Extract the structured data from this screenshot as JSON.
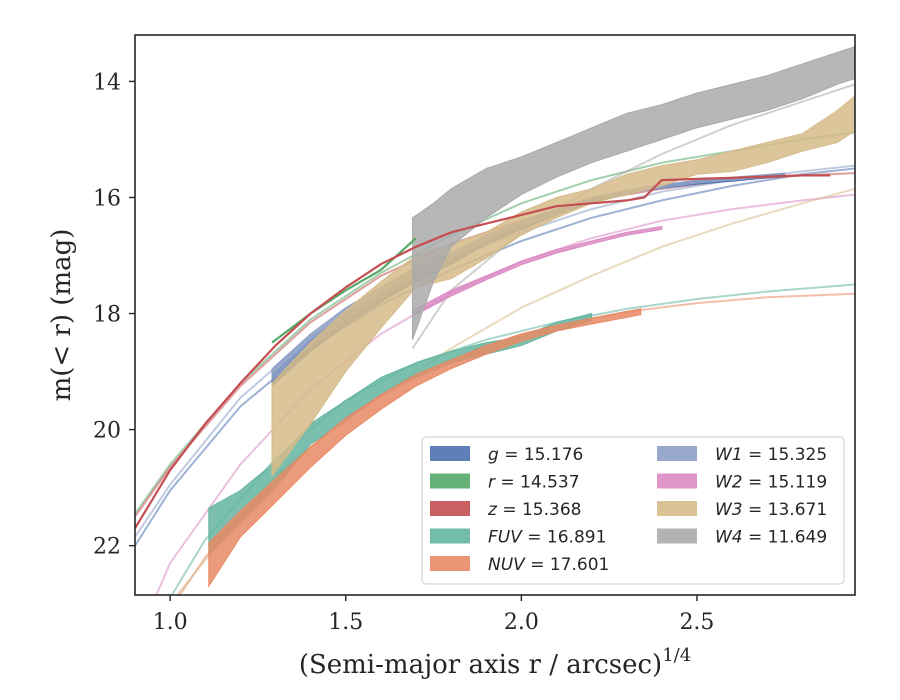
{
  "chart_data": {
    "type": "line",
    "xlabel": "(Semi-major axis r / arcsec)",
    "xlabel_sup": "1/4",
    "ylabel": "m(< r) (mag)",
    "xlim": [
      0.9,
      2.95
    ],
    "ylim": [
      22.85,
      13.2
    ],
    "y_inverted": true,
    "x_ticks": [
      1.0,
      1.5,
      2.0,
      2.5
    ],
    "x_tick_labels": [
      "1.0",
      "1.5",
      "2.0",
      "2.5"
    ],
    "y_ticks": [
      14,
      16,
      18,
      20,
      22
    ],
    "y_tick_labels": [
      "14",
      "16",
      "18",
      "20",
      "22"
    ],
    "grid": false,
    "legend_position": "lower-right",
    "series": [
      {
        "name": "g = 15.176",
        "legend_label": "g",
        "legend_value": "= 15.176",
        "color": "#4c72b0",
        "model": [
          [
            0.9,
            22.0
          ],
          [
            1.0,
            21.05
          ],
          [
            1.2,
            19.6
          ],
          [
            1.4,
            18.6
          ],
          [
            1.6,
            17.85
          ],
          [
            1.8,
            17.25
          ],
          [
            2.0,
            16.75
          ],
          [
            2.2,
            16.35
          ],
          [
            2.4,
            16.05
          ],
          [
            2.6,
            15.8
          ],
          [
            2.8,
            15.6
          ],
          [
            2.95,
            15.5
          ]
        ],
        "band": [
          [
            1.29,
            19.05,
            19.25
          ],
          [
            1.4,
            18.45,
            18.65
          ],
          [
            1.5,
            18.0,
            18.2
          ],
          [
            1.6,
            17.65,
            17.8
          ],
          [
            1.7,
            17.3,
            17.45
          ],
          [
            1.8,
            17.0,
            17.15
          ],
          [
            1.9,
            16.7,
            16.8
          ],
          [
            2.0,
            16.45,
            16.55
          ],
          [
            2.1,
            16.2,
            16.3
          ],
          [
            2.2,
            16.0,
            16.08
          ],
          [
            2.35,
            15.82,
            15.88
          ],
          [
            2.5,
            15.72,
            15.77
          ],
          [
            2.6,
            15.68,
            15.72
          ],
          [
            2.7,
            15.62,
            15.66
          ],
          [
            2.75,
            15.6,
            15.64
          ]
        ],
        "line": null
      },
      {
        "name": "r = 14.537",
        "legend_label": "r",
        "legend_value": "= 14.537",
        "color": "#55a868",
        "model": [
          [
            0.9,
            21.45
          ],
          [
            1.0,
            20.6
          ],
          [
            1.2,
            19.2
          ],
          [
            1.4,
            18.1
          ],
          [
            1.6,
            17.3
          ],
          [
            1.8,
            16.65
          ],
          [
            2.0,
            16.1
          ],
          [
            2.2,
            15.7
          ],
          [
            2.4,
            15.4
          ],
          [
            2.6,
            15.2
          ],
          [
            2.8,
            15.0
          ],
          [
            2.95,
            14.88
          ]
        ],
        "band": null,
        "line": [
          [
            1.29,
            18.5
          ],
          [
            1.4,
            18.0
          ],
          [
            1.5,
            17.6
          ],
          [
            1.6,
            17.25
          ],
          [
            1.7,
            16.7
          ]
        ]
      },
      {
        "name": "z = 15.368",
        "legend_label": "z",
        "legend_value": "= 15.368",
        "color": "#c44e52",
        "model": [
          [
            0.9,
            21.5
          ],
          [
            1.0,
            20.65
          ],
          [
            1.2,
            19.25
          ],
          [
            1.4,
            18.15
          ],
          [
            1.6,
            17.35
          ],
          [
            1.8,
            16.8
          ],
          [
            2.0,
            16.4
          ],
          [
            2.2,
            16.05
          ],
          [
            2.4,
            15.85
          ],
          [
            2.6,
            15.7
          ],
          [
            2.8,
            15.62
          ],
          [
            2.95,
            15.58
          ]
        ],
        "band": null,
        "line": [
          [
            0.9,
            21.7
          ],
          [
            1.0,
            20.7
          ],
          [
            1.1,
            19.9
          ],
          [
            1.2,
            19.2
          ],
          [
            1.3,
            18.55
          ],
          [
            1.4,
            18.0
          ],
          [
            1.5,
            17.55
          ],
          [
            1.6,
            17.15
          ],
          [
            1.7,
            16.85
          ],
          [
            1.8,
            16.6
          ],
          [
            1.9,
            16.45
          ],
          [
            2.0,
            16.3
          ],
          [
            2.1,
            16.15
          ],
          [
            2.2,
            16.1
          ],
          [
            2.3,
            16.05
          ],
          [
            2.35,
            16.0
          ],
          [
            2.38,
            15.82
          ],
          [
            2.4,
            15.7
          ],
          [
            2.5,
            15.68
          ],
          [
            2.6,
            15.66
          ],
          [
            2.7,
            15.64
          ],
          [
            2.8,
            15.62
          ],
          [
            2.88,
            15.62
          ]
        ]
      },
      {
        "name": "FUV = 16.891",
        "legend_label": "FUV",
        "legend_value": "= 16.891",
        "color": "#64b5a0",
        "model": [
          [
            1.0,
            22.9
          ],
          [
            1.1,
            21.9
          ],
          [
            1.3,
            20.5
          ],
          [
            1.5,
            19.5
          ],
          [
            1.7,
            18.85
          ],
          [
            1.9,
            18.45
          ],
          [
            2.1,
            18.15
          ],
          [
            2.3,
            17.92
          ],
          [
            2.5,
            17.75
          ],
          [
            2.7,
            17.62
          ],
          [
            2.95,
            17.5
          ]
        ],
        "band": [
          [
            1.11,
            21.35,
            22.15
          ],
          [
            1.2,
            21.05,
            21.6
          ],
          [
            1.3,
            20.55,
            21.0
          ],
          [
            1.4,
            19.9,
            20.25
          ],
          [
            1.5,
            19.5,
            19.85
          ],
          [
            1.6,
            19.1,
            19.4
          ],
          [
            1.7,
            18.85,
            19.1
          ],
          [
            1.8,
            18.65,
            18.85
          ],
          [
            1.9,
            18.5,
            18.7
          ],
          [
            2.0,
            18.4,
            18.55
          ],
          [
            2.1,
            18.15,
            18.3
          ],
          [
            2.2,
            18.0,
            18.12
          ]
        ],
        "line": null
      },
      {
        "name": "NUV = 17.601",
        "legend_label": "NUV",
        "legend_value": "= 17.601",
        "color": "#e88a65",
        "model": [
          [
            1.0,
            23.1
          ],
          [
            1.1,
            22.2
          ],
          [
            1.3,
            20.8
          ],
          [
            1.5,
            19.8
          ],
          [
            1.7,
            19.05
          ],
          [
            1.9,
            18.55
          ],
          [
            2.1,
            18.2
          ],
          [
            2.3,
            17.97
          ],
          [
            2.5,
            17.82
          ],
          [
            2.7,
            17.72
          ],
          [
            2.95,
            17.66
          ]
        ],
        "band": [
          [
            1.11,
            21.95,
            22.7
          ],
          [
            1.2,
            21.4,
            21.85
          ],
          [
            1.3,
            20.85,
            21.25
          ],
          [
            1.4,
            20.3,
            20.65
          ],
          [
            1.5,
            19.8,
            20.1
          ],
          [
            1.6,
            19.4,
            19.65
          ],
          [
            1.7,
            19.05,
            19.25
          ],
          [
            1.8,
            18.8,
            18.95
          ],
          [
            1.9,
            18.55,
            18.7
          ],
          [
            2.0,
            18.35,
            18.48
          ],
          [
            2.1,
            18.2,
            18.3
          ],
          [
            2.2,
            18.08,
            18.18
          ],
          [
            2.34,
            17.92,
            18.02
          ]
        ],
        "line": null
      },
      {
        "name": "W1 = 15.325",
        "legend_label": "W1",
        "legend_value": "= 15.325",
        "color": "#8c9fc6",
        "model": [
          [
            0.9,
            21.85
          ],
          [
            1.0,
            20.95
          ],
          [
            1.2,
            19.45
          ],
          [
            1.4,
            18.4
          ],
          [
            1.6,
            17.65
          ],
          [
            1.8,
            17.05
          ],
          [
            2.0,
            16.6
          ],
          [
            2.2,
            16.2
          ],
          [
            2.4,
            15.9
          ],
          [
            2.6,
            15.7
          ],
          [
            2.8,
            15.55
          ],
          [
            2.95,
            15.45
          ]
        ],
        "band": [
          [
            1.29,
            18.95,
            19.15
          ],
          [
            1.4,
            18.35,
            18.55
          ],
          [
            1.5,
            17.9,
            18.1
          ],
          [
            1.6,
            17.55,
            17.72
          ],
          [
            1.7,
            17.2,
            17.35
          ],
          [
            1.8,
            16.95,
            17.08
          ],
          [
            1.9,
            16.65,
            16.75
          ],
          [
            2.0,
            16.4,
            16.5
          ],
          [
            2.1,
            16.2,
            16.28
          ],
          [
            2.2,
            16.0,
            16.06
          ],
          [
            2.35,
            15.82,
            15.88
          ],
          [
            2.5,
            15.7,
            15.75
          ],
          [
            2.6,
            15.65,
            15.7
          ],
          [
            2.75,
            15.58,
            15.62
          ]
        ],
        "line": null
      },
      {
        "name": "W2 = 15.119",
        "legend_label": "W2",
        "legend_value": "= 15.119",
        "color": "#da8bc3",
        "model": [
          [
            0.95,
            23.0
          ],
          [
            1.0,
            22.3
          ],
          [
            1.2,
            20.6
          ],
          [
            1.4,
            19.3
          ],
          [
            1.6,
            18.35
          ],
          [
            1.8,
            17.65
          ],
          [
            2.0,
            17.1
          ],
          [
            2.2,
            16.7
          ],
          [
            2.4,
            16.4
          ],
          [
            2.6,
            16.2
          ],
          [
            2.8,
            16.05
          ],
          [
            2.95,
            15.95
          ]
        ],
        "band": [
          [
            1.69,
            17.95,
            18.05
          ],
          [
            1.8,
            17.6,
            17.7
          ],
          [
            1.9,
            17.35,
            17.42
          ],
          [
            2.0,
            17.1,
            17.16
          ],
          [
            2.1,
            16.9,
            16.96
          ],
          [
            2.2,
            16.75,
            16.8
          ],
          [
            2.3,
            16.6,
            16.65
          ],
          [
            2.4,
            16.5,
            16.55
          ]
        ],
        "line": null
      },
      {
        "name": "W3 = 13.671",
        "legend_label": "W3",
        "legend_value": "= 13.671",
        "color": "#d6bb8a",
        "model": [
          [
            1.0,
            23.0
          ],
          [
            1.2,
            21.5
          ],
          [
            1.4,
            20.3
          ],
          [
            1.6,
            19.4
          ],
          [
            1.8,
            18.6
          ],
          [
            2.0,
            17.9
          ],
          [
            2.2,
            17.35
          ],
          [
            2.4,
            16.85
          ],
          [
            2.6,
            16.45
          ],
          [
            2.8,
            16.1
          ],
          [
            2.95,
            15.85
          ]
        ],
        "band": [
          [
            1.29,
            19.2,
            20.8
          ],
          [
            1.4,
            18.5,
            19.9
          ],
          [
            1.5,
            17.95,
            19.0
          ],
          [
            1.6,
            17.45,
            18.25
          ],
          [
            1.7,
            17.0,
            17.55
          ],
          [
            1.8,
            16.8,
            17.4
          ],
          [
            1.9,
            16.6,
            17.05
          ],
          [
            2.0,
            16.25,
            16.65
          ],
          [
            2.1,
            16.0,
            16.35
          ],
          [
            2.2,
            15.85,
            16.1
          ],
          [
            2.3,
            15.6,
            15.95
          ],
          [
            2.4,
            15.45,
            15.8
          ],
          [
            2.5,
            15.35,
            15.6
          ],
          [
            2.6,
            15.2,
            15.55
          ],
          [
            2.7,
            15.05,
            15.4
          ],
          [
            2.8,
            14.9,
            15.2
          ],
          [
            2.9,
            14.5,
            15.05
          ],
          [
            2.95,
            14.25,
            14.85
          ]
        ],
        "line": null
      },
      {
        "name": "W4 = 11.649",
        "legend_label": "W4",
        "legend_value": "= 11.649",
        "color": "#aaaaaa",
        "model": [
          [
            1.69,
            18.6
          ],
          [
            1.8,
            17.6
          ],
          [
            2.0,
            16.6
          ],
          [
            2.2,
            15.85
          ],
          [
            2.4,
            15.25
          ],
          [
            2.6,
            14.75
          ],
          [
            2.8,
            14.35
          ],
          [
            2.95,
            14.05
          ]
        ],
        "band": [
          [
            1.69,
            16.35,
            18.45
          ],
          [
            1.75,
            16.1,
            17.45
          ],
          [
            1.8,
            15.85,
            16.85
          ],
          [
            1.9,
            15.5,
            16.35
          ],
          [
            2.0,
            15.3,
            15.95
          ],
          [
            2.1,
            15.05,
            15.65
          ],
          [
            2.2,
            14.8,
            15.4
          ],
          [
            2.3,
            14.55,
            15.2
          ],
          [
            2.4,
            14.4,
            15.0
          ],
          [
            2.5,
            14.2,
            14.8
          ],
          [
            2.6,
            14.05,
            14.65
          ],
          [
            2.7,
            13.9,
            14.5
          ],
          [
            2.8,
            13.7,
            14.3
          ],
          [
            2.9,
            13.5,
            14.05
          ],
          [
            2.95,
            13.4,
            13.95
          ]
        ],
        "line": null
      }
    ]
  }
}
